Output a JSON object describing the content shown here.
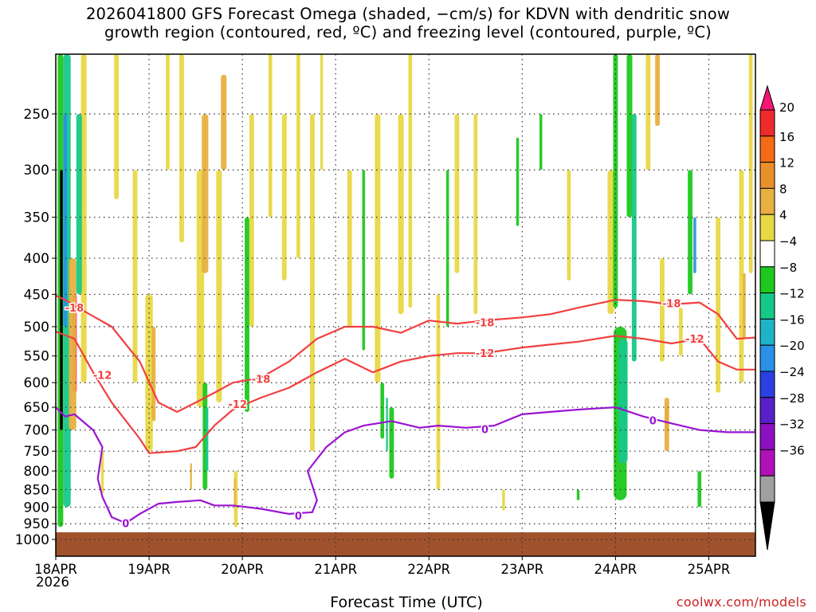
{
  "title": {
    "line1": "2026041800 GFS Forecast Omega (shaded, −cm/s) for KDVN with dendritic snow",
    "line2": "growth region (contoured, red, ºC) and freezing level (contoured, purple, ºC)"
  },
  "colors": {
    "ground": "#a0522d",
    "dgz_contour": "#f04040",
    "freezing_contour": "#9a14d0",
    "grid": "#333333"
  },
  "chart_data": {
    "type": "heatmap",
    "title": "2026041800 GFS Forecast Omega (shaded, −cm/s) for KDVN with dendritic snow growth region (contoured, red, ºC) and freezing level (contoured, purple, ºC)",
    "xlabel": "Forecast Time (UTC)",
    "ylabel": "",
    "x_ticks": [
      "18APR",
      "19APR",
      "20APR",
      "21APR",
      "22APR",
      "23APR",
      "24APR",
      "25APR"
    ],
    "x_tick_sub": "2026",
    "xlim_days": [
      18,
      25.5
    ],
    "y_ticks": [
      250,
      300,
      350,
      400,
      450,
      500,
      550,
      600,
      650,
      700,
      750,
      800,
      850,
      900,
      950,
      1000
    ],
    "ylim": [
      200,
      1000
    ],
    "y_scale": "log-pressure, inverted",
    "grid": true,
    "colorbar": {
      "labels": [
        "20",
        "16",
        "12",
        "8",
        "4",
        "−4",
        "−8",
        "−12",
        "−16",
        "−20",
        "−24",
        "−28",
        "−32",
        "−36"
      ],
      "bands": [
        "#f41672",
        "#ee2a2a",
        "#f46a16",
        "#e8902a",
        "#e8b040",
        "#e8d844",
        "#ffffff",
        "#1ec81e",
        "#16c888",
        "#1eb4c8",
        "#2a90e8",
        "#2a40e0",
        "#5a20c8",
        "#8c10c0",
        "#b010b8",
        "#a0a0a0",
        "#000000"
      ]
    },
    "contours": [
      {
        "label": "-18",
        "color": "#f04040",
        "points": [
          [
            18,
            452
          ],
          [
            18.1,
            458
          ],
          [
            18.3,
            475
          ],
          [
            18.6,
            500
          ],
          [
            18.9,
            560
          ],
          [
            19.1,
            640
          ],
          [
            19.3,
            660
          ],
          [
            19.5,
            640
          ],
          [
            19.7,
            620
          ],
          [
            19.9,
            600
          ],
          [
            20.2,
            590
          ],
          [
            20.5,
            560
          ],
          [
            20.8,
            520
          ],
          [
            21.1,
            500
          ],
          [
            21.4,
            500
          ],
          [
            21.7,
            510
          ],
          [
            22,
            490
          ],
          [
            22.3,
            495
          ],
          [
            22.6,
            490
          ],
          [
            23,
            485
          ],
          [
            23.3,
            480
          ],
          [
            23.6,
            470
          ],
          [
            24,
            458
          ],
          [
            24.3,
            460
          ],
          [
            24.6,
            465
          ],
          [
            24.9,
            462
          ],
          [
            25.1,
            480
          ],
          [
            25.3,
            520
          ],
          [
            25.5,
            518
          ]
        ]
      },
      {
        "label": "-12",
        "color": "#f04040",
        "points": [
          [
            18,
            508
          ],
          [
            18.2,
            520
          ],
          [
            18.4,
            580
          ],
          [
            18.6,
            640
          ],
          [
            18.9,
            720
          ],
          [
            19.0,
            755
          ],
          [
            19.3,
            750
          ],
          [
            19.5,
            740
          ],
          [
            19.7,
            690
          ],
          [
            19.9,
            655
          ],
          [
            20.2,
            630
          ],
          [
            20.5,
            610
          ],
          [
            20.8,
            580
          ],
          [
            21.1,
            555
          ],
          [
            21.4,
            580
          ],
          [
            21.7,
            560
          ],
          [
            22,
            550
          ],
          [
            22.3,
            545
          ],
          [
            22.6,
            545
          ],
          [
            23,
            535
          ],
          [
            23.3,
            530
          ],
          [
            23.6,
            525
          ],
          [
            24,
            515
          ],
          [
            24.3,
            520
          ],
          [
            24.6,
            528
          ],
          [
            24.9,
            520
          ],
          [
            25.1,
            560
          ],
          [
            25.3,
            575
          ],
          [
            25.5,
            575
          ]
        ]
      },
      {
        "label": "0",
        "color": "#9a14d0",
        "points": [
          [
            18,
            650
          ],
          [
            18.1,
            670
          ],
          [
            18.2,
            665
          ],
          [
            18.4,
            700
          ],
          [
            18.5,
            740
          ],
          [
            18.45,
            820
          ],
          [
            18.5,
            870
          ],
          [
            18.6,
            930
          ],
          [
            18.75,
            948
          ],
          [
            18.9,
            920
          ],
          [
            19.1,
            890
          ],
          [
            19.3,
            885
          ],
          [
            19.55,
            880
          ],
          [
            19.7,
            895
          ],
          [
            19.9,
            895
          ],
          [
            20.2,
            905
          ],
          [
            20.5,
            920
          ],
          [
            20.75,
            915
          ],
          [
            20.8,
            880
          ],
          [
            20.7,
            800
          ],
          [
            20.9,
            740
          ],
          [
            21.1,
            705
          ],
          [
            21.3,
            690
          ],
          [
            21.6,
            680
          ],
          [
            21.9,
            695
          ],
          [
            22.1,
            690
          ],
          [
            22.4,
            695
          ],
          [
            22.7,
            690
          ],
          [
            23,
            665
          ],
          [
            23.3,
            660
          ],
          [
            23.6,
            655
          ],
          [
            24,
            650
          ],
          [
            24.3,
            670
          ],
          [
            24.6,
            685
          ],
          [
            24.9,
            700
          ],
          [
            25.2,
            705
          ],
          [
            25.5,
            705
          ]
        ]
      }
    ],
    "annotations": [
      "-18",
      "-12",
      "-18",
      "-12",
      "-18",
      "-12",
      "-18",
      "-12",
      "0",
      "0",
      "0",
      "0"
    ]
  },
  "credit": "coolwx.com/models"
}
